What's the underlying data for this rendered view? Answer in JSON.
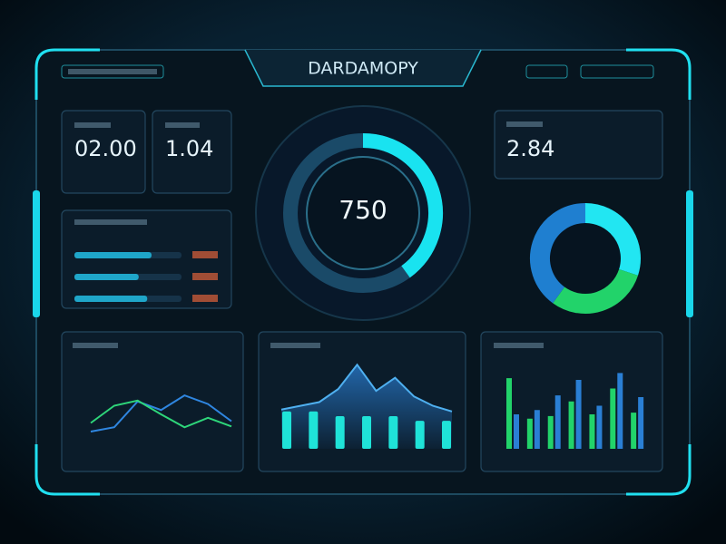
{
  "header": {
    "title": "DARDAMOPY"
  },
  "stats": [
    "02.00",
    "1.04",
    "2.84"
  ],
  "gauge": {
    "label": "750",
    "fill": 40,
    "color": "#19e3f0"
  },
  "progress_bars": {
    "values": [
      72,
      60,
      68
    ],
    "color": "#1fa6c9"
  },
  "donut": {
    "values": [
      30,
      30,
      40
    ],
    "colors": [
      "#22e6f2",
      "#22d36a",
      "#1f7fd0"
    ]
  },
  "line_chart": {
    "ylim": [
      0,
      100
    ],
    "series": [
      {
        "color": "#2f86e0",
        "values": [
          20,
          25,
          55,
          45,
          62,
          52,
          32
        ]
      },
      {
        "color": "#2ed67a",
        "values": [
          30,
          50,
          56,
          40,
          25,
          36,
          26
        ]
      }
    ]
  },
  "area_chart": {
    "ylim": [
      0,
      100
    ],
    "color": "#2a7fd4",
    "bar_color": "#1fe3d8",
    "area": [
      42,
      46,
      50,
      64,
      90,
      62,
      76,
      56,
      46,
      40
    ],
    "bars": [
      40,
      40,
      35,
      35,
      35,
      30,
      30
    ]
  },
  "bar_chart": {
    "ylim": [
      0,
      100
    ],
    "series": [
      {
        "color": "#22d36a",
        "values": [
          82,
          35,
          38,
          55,
          40,
          70,
          42
        ]
      },
      {
        "color": "#2a7fd4",
        "values": [
          40,
          45,
          62,
          80,
          50,
          88,
          60
        ]
      }
    ]
  }
}
